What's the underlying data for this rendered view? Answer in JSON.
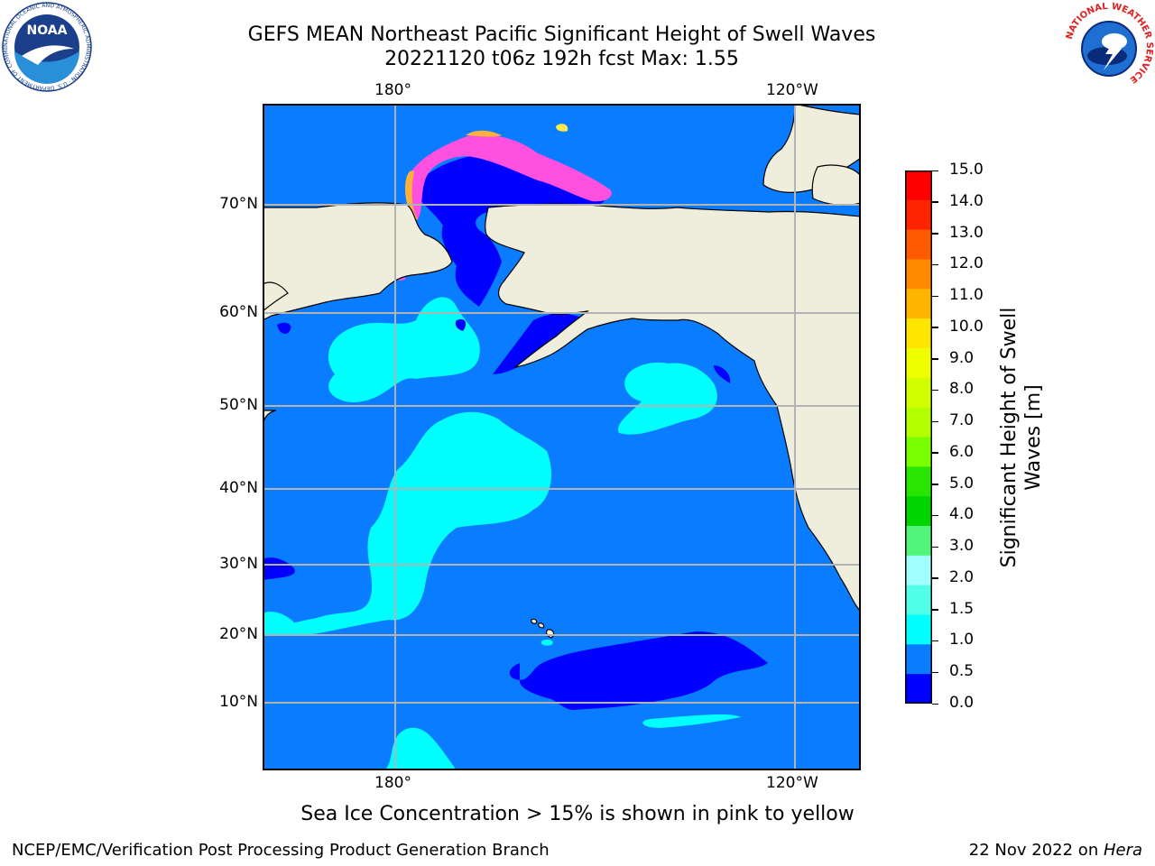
{
  "title": {
    "line1": "GEFS MEAN Northeast Pacific Significant Height of Swell Waves",
    "line2": "20221120 t06z 192h fcst   Max: 1.55"
  },
  "map": {
    "lon_labels_top": [
      "180°",
      "120°W"
    ],
    "lon_labels_bottom": [
      "180°",
      "120°W"
    ],
    "lat_labels": [
      "70°N",
      "60°N",
      "50°N",
      "40°N",
      "30°N",
      "20°N",
      "10°N"
    ],
    "colors": {
      "land": "#efeedc",
      "ocean_0_5_1_0": "#0a7cff",
      "ocean_0_0_5": "#0000ff",
      "ocean_1_0_1_5": "#00ffff",
      "ocean_1_5_2_0": "#4affe0",
      "ice_pink": "#ff50e0",
      "ice_orange": "#ffb13a",
      "ice_yellow": "#ffe84a",
      "grid": "#b3b3b3"
    }
  },
  "colorbar": {
    "title_line1": "Significant Height of Swell",
    "title_line2": "Waves [m]",
    "ticks": [
      "15.0",
      "14.0",
      "13.0",
      "12.0",
      "11.0",
      "10.0",
      "9.0",
      "8.0",
      "7.0",
      "6.0",
      "5.0",
      "4.0",
      "3.0",
      "2.0",
      "1.5",
      "1.0",
      "0.5",
      "0.0"
    ],
    "colors_top_to_bottom": [
      "#ff0000",
      "#ff2400",
      "#ff5a00",
      "#ff8a00",
      "#ffb400",
      "#ffe600",
      "#f0ff00",
      "#d2ff00",
      "#b4ff00",
      "#78ff00",
      "#28e600",
      "#00d400",
      "#50f57a",
      "#a0ffff",
      "#50ffe6",
      "#00ffff",
      "#0a7cff",
      "#0000ff"
    ]
  },
  "caption": "Sea Ice Concentration > 15% is shown in pink to yellow",
  "footer": {
    "left": "NCEP/EMC/Verification Post Processing Product Generation Branch",
    "right_date": "22 Nov 2022 on ",
    "right_host": "Hera"
  },
  "logos": {
    "noaa_text": "NOAA",
    "noaa_ring_text": "NATIONAL OCEANIC AND ATMOSPHERIC ADMINISTRATION · U.S. DEPARTMENT OF COMMERCE",
    "nws_ring_text": "NATIONAL WEATHER SERVICE"
  }
}
